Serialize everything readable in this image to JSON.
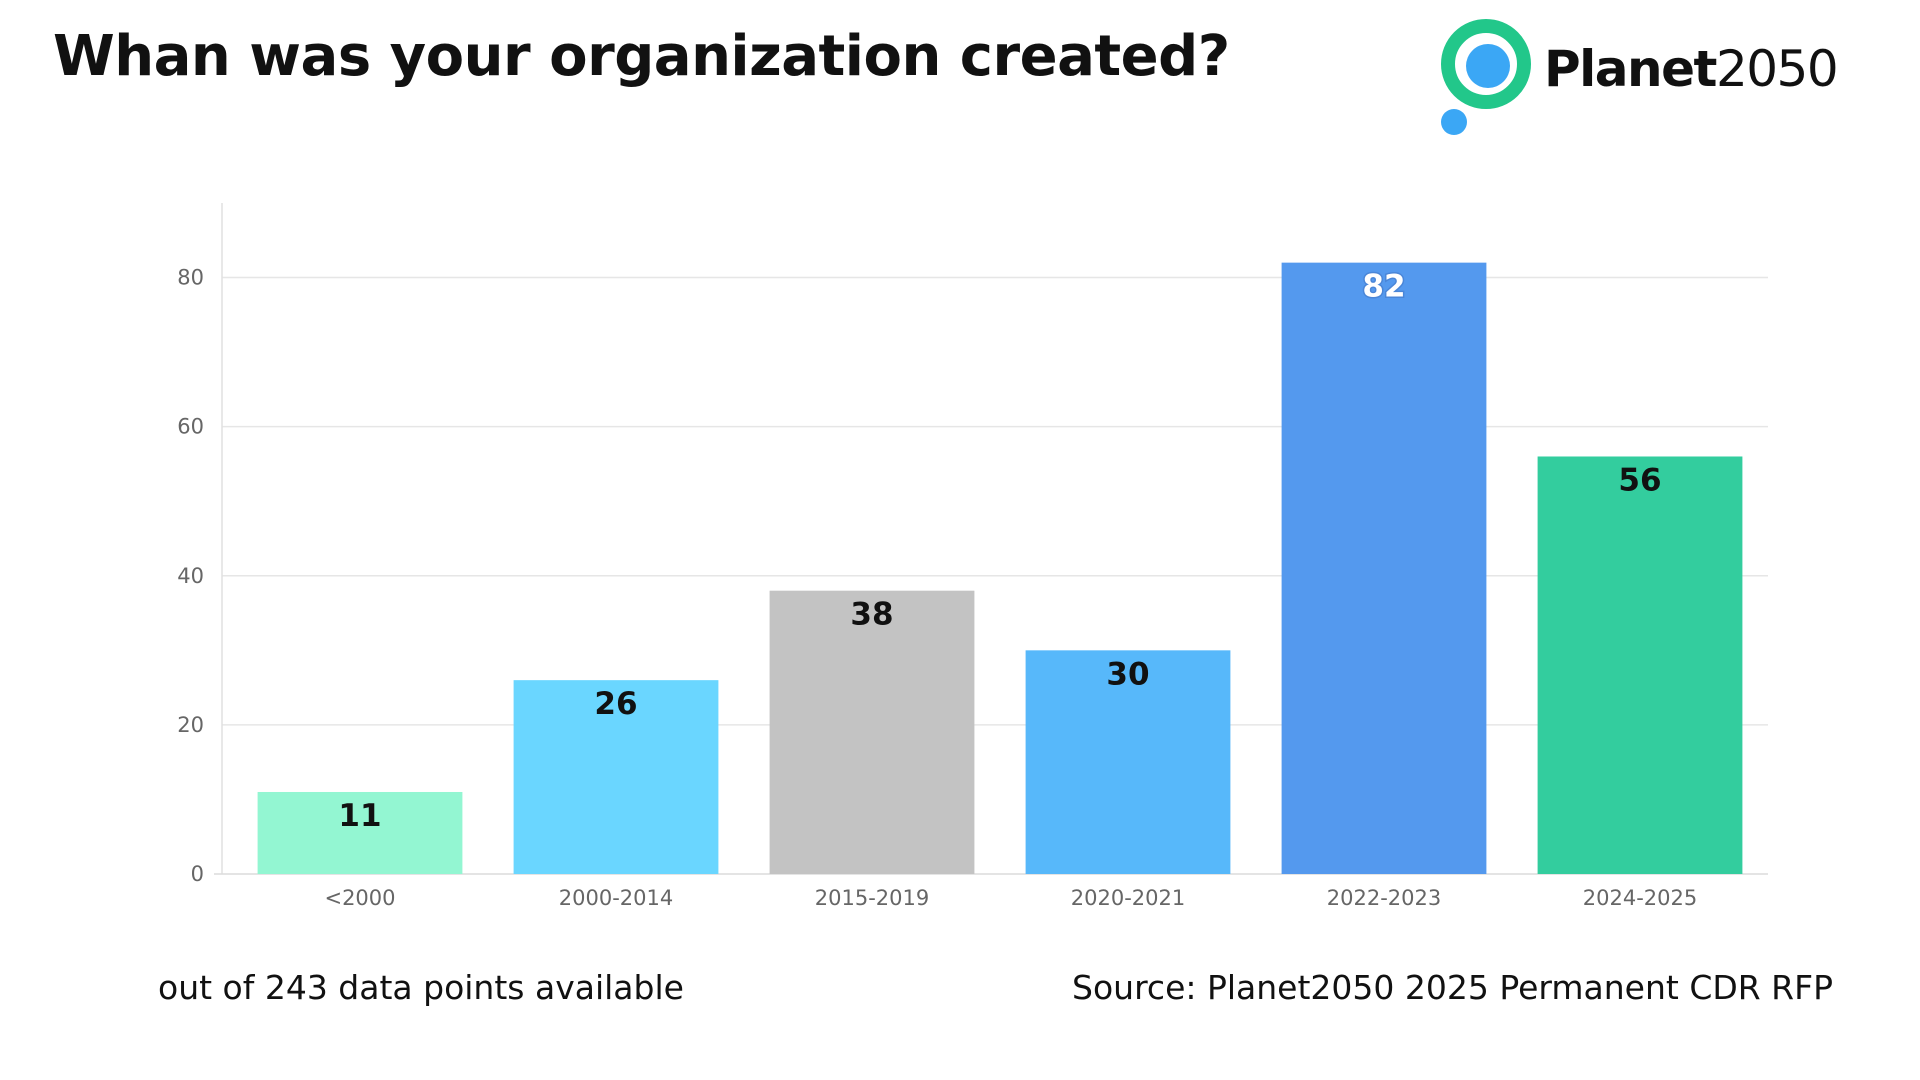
{
  "title": "Whan was your organization created?",
  "logo": {
    "name_strong": "Planet",
    "name_light": "2050",
    "icon": "planet-logo-icon",
    "colors": {
      "ring": "#22c78a",
      "dot": "#3ba7f5"
    }
  },
  "footer": {
    "note": "out of 243 data points available",
    "source": "Source: Planet2050 2025 Permanent CDR RFP"
  },
  "chart_data": {
    "type": "bar",
    "title": "",
    "xlabel": "",
    "ylabel": "",
    "categories": [
      "<2000",
      "2000-2014",
      "2015-2019",
      "2020-2021",
      "2022-2023",
      "2024-2025"
    ],
    "values": [
      11,
      26,
      38,
      30,
      82,
      56
    ],
    "colors": [
      "#93f6d2",
      "#6ad6ff",
      "#c3c3c3",
      "#57b8fa",
      "#5499ee",
      "#33cd9e"
    ],
    "ylim": [
      0,
      90
    ],
    "yticks": [
      0,
      20,
      40,
      60,
      80
    ],
    "grid": true,
    "legend": "none",
    "data_labels": true
  }
}
